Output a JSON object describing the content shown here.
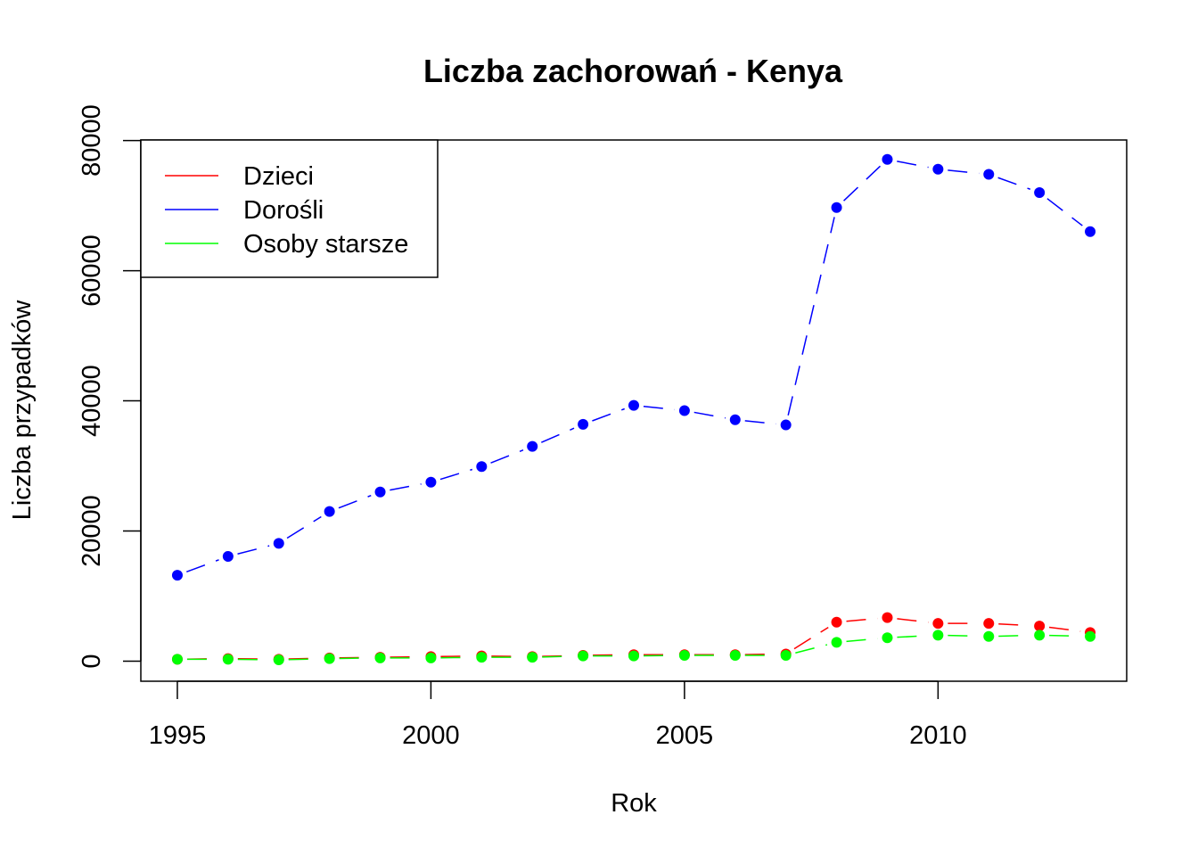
{
  "chart_data": {
    "type": "line",
    "title": "Liczba zachorowań -  Kenya",
    "xlabel": "Rok",
    "ylabel": "Liczba przypadków",
    "x": [
      1995,
      1996,
      1997,
      1998,
      1999,
      2000,
      2001,
      2002,
      2003,
      2004,
      2005,
      2006,
      2007,
      2008,
      2009,
      2010,
      2011,
      2012,
      2013
    ],
    "xlim": [
      1994.28,
      2013.72
    ],
    "ylim": [
      -3080,
      80080
    ],
    "xticks": [
      1995,
      2000,
      2005,
      2010
    ],
    "yticks": [
      0,
      20000,
      40000,
      60000,
      80000
    ],
    "grid": false,
    "legend_position": "top-left",
    "series": [
      {
        "name": "Dzieci",
        "color": "#ff0000",
        "values": [
          300,
          400,
          300,
          500,
          600,
          700,
          800,
          700,
          900,
          1000,
          1000,
          1000,
          1100,
          6000,
          6700,
          5800,
          5800,
          5400,
          4400
        ]
      },
      {
        "name": "Dorośli",
        "color": "#0000ff",
        "values": [
          13200,
          16100,
          18100,
          23000,
          26000,
          27500,
          29900,
          33000,
          36400,
          39300,
          38500,
          37100,
          36300,
          69700,
          77100,
          75600,
          74800,
          72000,
          66000
        ]
      },
      {
        "name": "Osoby starsze",
        "color": "#00ff00",
        "values": [
          300,
          300,
          200,
          400,
          500,
          500,
          600,
          600,
          800,
          800,
          900,
          900,
          900,
          2900,
          3600,
          4000,
          3800,
          4000,
          3800
        ]
      }
    ]
  }
}
